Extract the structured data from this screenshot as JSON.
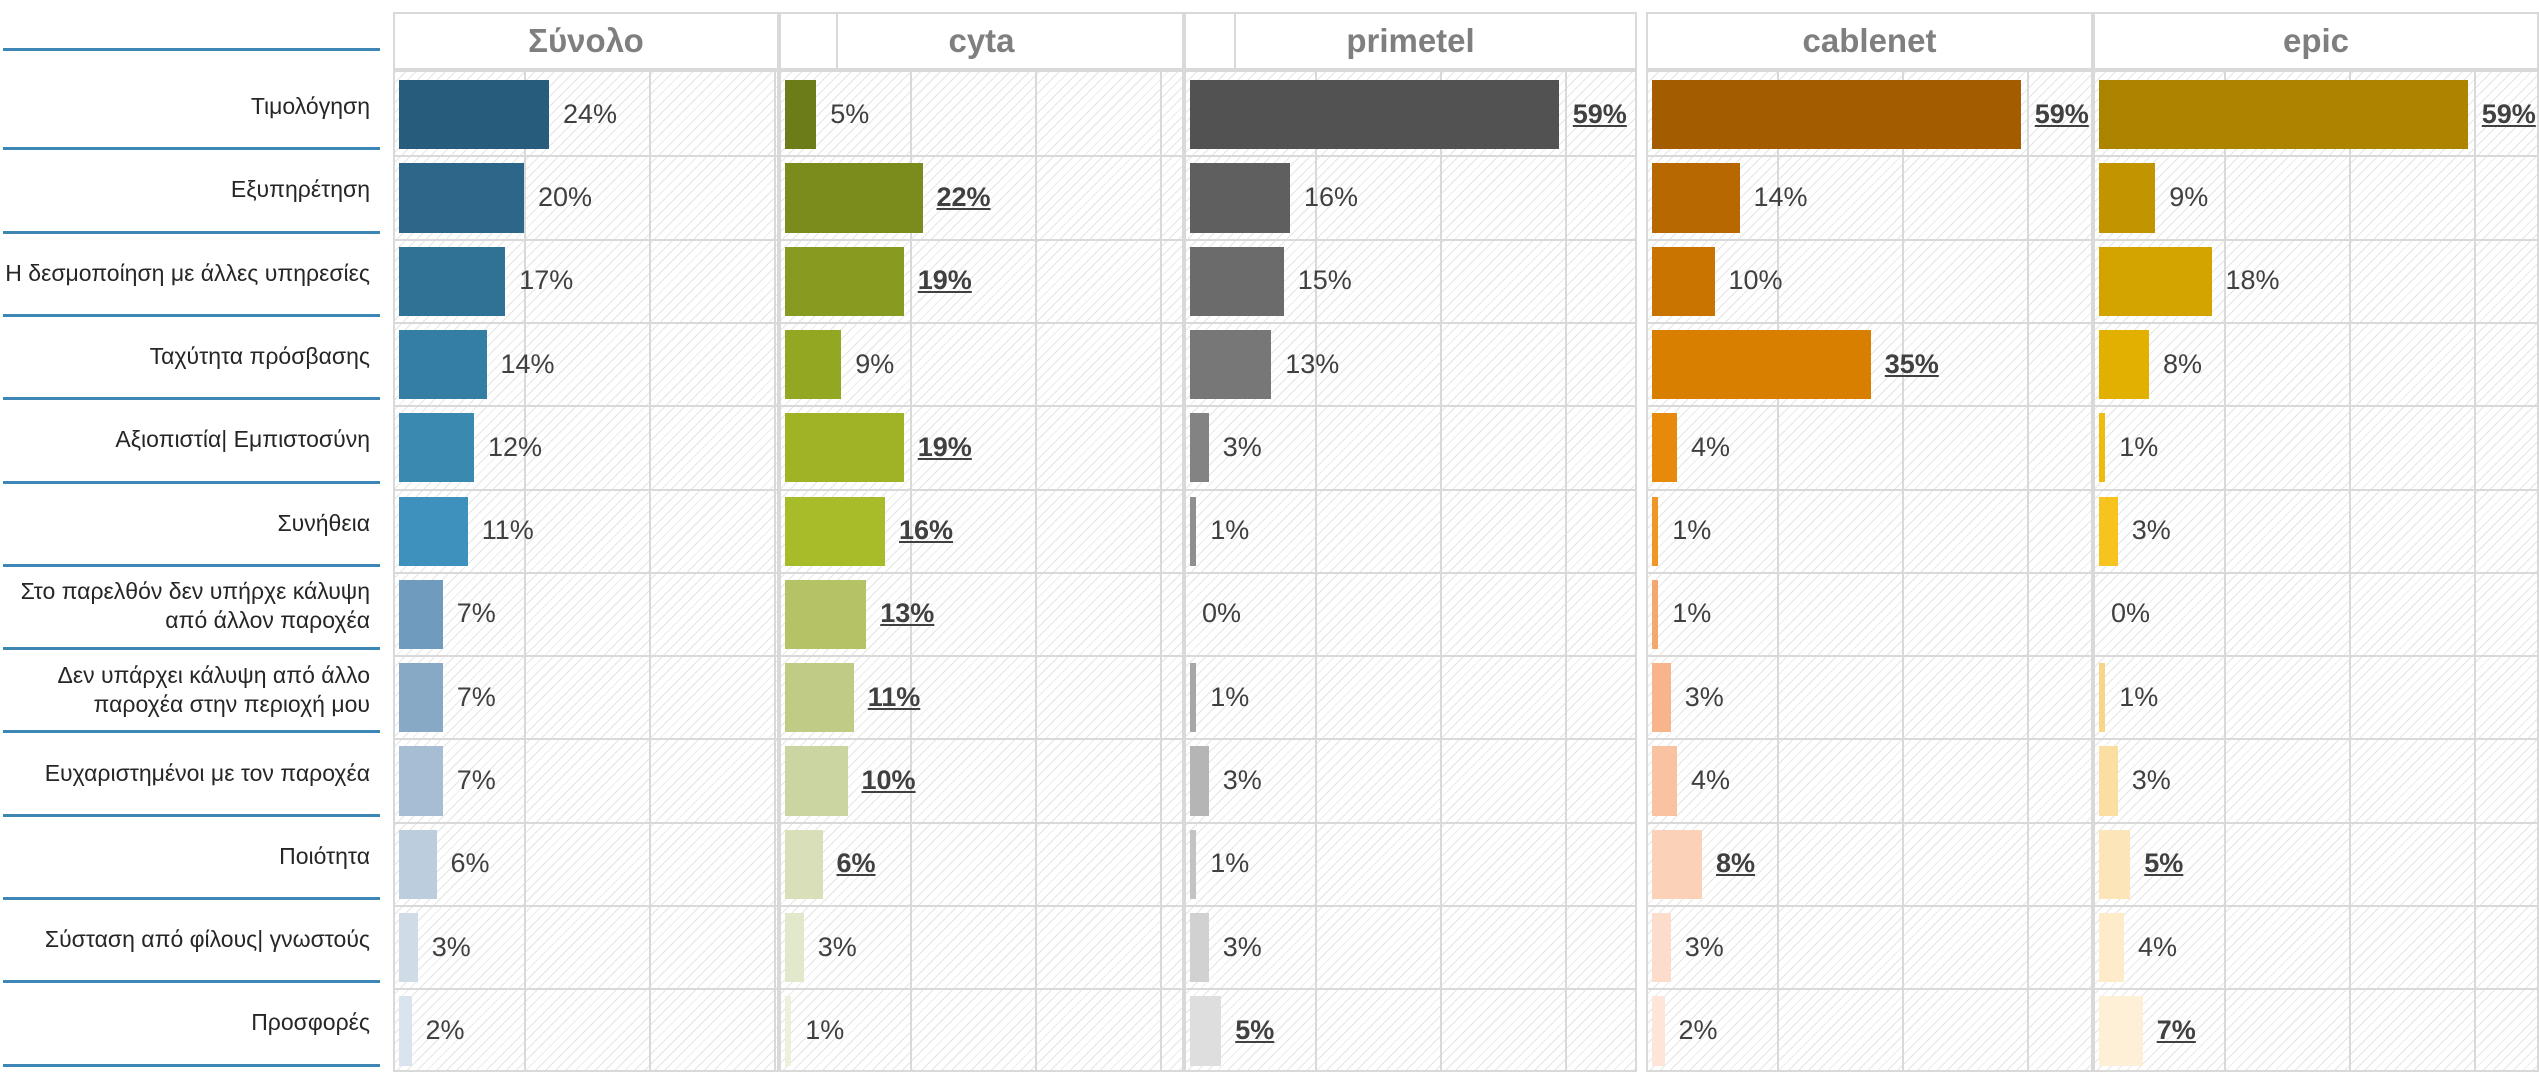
{
  "chart_data": {
    "type": "bar",
    "orientation": "horizontal",
    "categories": [
      "Τιμολόγηση",
      "Εξυπηρέτηση",
      "Η δεσμοποίηση με άλλες υπηρεσίες",
      "Ταχύτητα πρόσβασης",
      "Αξιοπιστία| Εμπιστοσύνη",
      "Συνήθεια",
      "Στο παρελθόν δεν υπήρχε κάλυψη από άλλον παροχέα",
      "Δεν υπάρχει κάλυψη από άλλο παροχέα στην περιοχή μου",
      "Ευχαριστημένοι με τον παροχέα",
      "Ποιότητα",
      "Σύσταση από φίλους| γνωστούς",
      "Προσφορές"
    ],
    "xlim": [
      0,
      100
    ],
    "series": [
      {
        "name": "Σύνολο",
        "values": [
          24,
          20,
          17,
          14,
          12,
          11,
          7,
          7,
          7,
          6,
          3,
          2
        ],
        "highlight": [
          false,
          false,
          false,
          false,
          false,
          false,
          false,
          false,
          false,
          false,
          false,
          false
        ],
        "colors": [
          "#275c7c",
          "#2c6789",
          "#307296",
          "#357ea3",
          "#3a89b0",
          "#3f91bd",
          "#6f9cbe",
          "#88a9c6",
          "#a6bdd3",
          "#bccddd",
          "#cfdbe7",
          "#dae4ee"
        ]
      },
      {
        "name": "cyta",
        "values": [
          5,
          22,
          19,
          9,
          19,
          16,
          13,
          11,
          10,
          6,
          3,
          1
        ],
        "highlight": [
          false,
          true,
          true,
          false,
          true,
          true,
          true,
          true,
          true,
          true,
          false,
          false
        ],
        "colors": [
          "#6c7c18",
          "#7b8b1c",
          "#889a20",
          "#93a722",
          "#9fb324",
          "#a8bb28",
          "#b5c366",
          "#c0cc85",
          "#cbd5a2",
          "#d8dfb9",
          "#e2e8cc",
          "#ecf0dc"
        ]
      },
      {
        "name": "primetel",
        "values": [
          59,
          16,
          15,
          13,
          3,
          1,
          0,
          1,
          3,
          1,
          3,
          5
        ],
        "highlight": [
          true,
          false,
          false,
          false,
          false,
          false,
          false,
          false,
          false,
          false,
          false,
          true
        ],
        "colors": [
          "#525252",
          "#5f5f5f",
          "#6b6b6b",
          "#777777",
          "#838383",
          "#8f8f8f",
          "#9b9b9b",
          "#a7a7a7",
          "#b5b5b5",
          "#c3c3c3",
          "#d1d1d1",
          "#dedede"
        ]
      },
      {
        "name": "cablenet",
        "values": [
          59,
          14,
          10,
          35,
          4,
          1,
          1,
          3,
          4,
          8,
          3,
          2
        ],
        "highlight": [
          true,
          false,
          false,
          true,
          false,
          false,
          false,
          false,
          false,
          true,
          false,
          false
        ],
        "colors": [
          "#a35c00",
          "#b86800",
          "#c97400",
          "#d97f00",
          "#e78a0c",
          "#ef9626",
          "#f5a770",
          "#f8b58b",
          "#f9c3a2",
          "#fbd1b8",
          "#fcdccb",
          "#fde5d9"
        ]
      },
      {
        "name": "epic",
        "values": [
          59,
          9,
          18,
          8,
          1,
          3,
          0,
          1,
          3,
          5,
          4,
          7
        ],
        "highlight": [
          true,
          false,
          false,
          false,
          false,
          false,
          false,
          false,
          false,
          true,
          false,
          true
        ],
        "colors": [
          "#ad8400",
          "#c29400",
          "#d3a300",
          "#e1b000",
          "#eebb0f",
          "#f6c31f",
          "#f8cf62",
          "#f9d687",
          "#fbdea2",
          "#fce5b8",
          "#fdebca",
          "#feefd7"
        ]
      }
    ]
  }
}
